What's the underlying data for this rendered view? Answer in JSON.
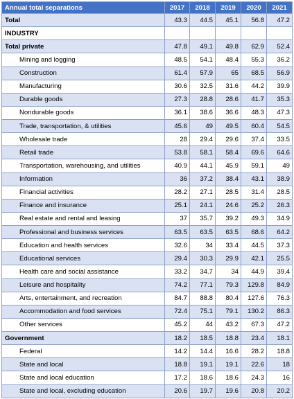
{
  "table": {
    "header": [
      "Annual total separations",
      "2017",
      "2018",
      "2019",
      "2020",
      "2021"
    ],
    "rows": [
      {
        "label": "Total",
        "values": [
          "43.3",
          "44.5",
          "45.1",
          "56.8",
          "47.2"
        ],
        "bold": true,
        "indent": false
      },
      {
        "label": "INDUSTRY",
        "values": [
          "",
          "",
          "",
          "",
          ""
        ],
        "bold": true,
        "indent": false
      },
      {
        "label": "Total private",
        "values": [
          "47.8",
          "49.1",
          "49.8",
          "62.9",
          "52.4"
        ],
        "bold": true,
        "indent": false
      },
      {
        "label": "Mining and logging",
        "values": [
          "48.5",
          "54.1",
          "48.4",
          "55.3",
          "36.2"
        ],
        "bold": false,
        "indent": true
      },
      {
        "label": "Construction",
        "values": [
          "61.4",
          "57.9",
          "65",
          "68.5",
          "56.9"
        ],
        "bold": false,
        "indent": true
      },
      {
        "label": "Manufacturing",
        "values": [
          "30.6",
          "32.5",
          "31.6",
          "44.2",
          "39.9"
        ],
        "bold": false,
        "indent": true
      },
      {
        "label": "Durable goods",
        "values": [
          "27.3",
          "28.8",
          "28.6",
          "41.7",
          "35.3"
        ],
        "bold": false,
        "indent": true
      },
      {
        "label": "Nondurable goods",
        "values": [
          "36.1",
          "38.6",
          "36.6",
          "48.3",
          "47.3"
        ],
        "bold": false,
        "indent": true
      },
      {
        "label": "Trade, transportation, & utilities",
        "values": [
          "45.6",
          "49",
          "49.5",
          "60.4",
          "54.5"
        ],
        "bold": false,
        "indent": true
      },
      {
        "label": "Wholesale trade",
        "values": [
          "28",
          "29.4",
          "29.6",
          "37.4",
          "33.5"
        ],
        "bold": false,
        "indent": true
      },
      {
        "label": "Retail trade",
        "values": [
          "53.8",
          "58.1",
          "58.4",
          "69.6",
          "64.6"
        ],
        "bold": false,
        "indent": true
      },
      {
        "label": "Transportation, warehousing, and utilities",
        "values": [
          "40.9",
          "44.1",
          "45.9",
          "59.1",
          "49"
        ],
        "bold": false,
        "indent": true
      },
      {
        "label": "Information",
        "values": [
          "36",
          "37.2",
          "38.4",
          "43.1",
          "38.9"
        ],
        "bold": false,
        "indent": true
      },
      {
        "label": "Financial activities",
        "values": [
          "28.2",
          "27.1",
          "28.5",
          "31.4",
          "28.5"
        ],
        "bold": false,
        "indent": true
      },
      {
        "label": "Finance and insurance",
        "values": [
          "25.1",
          "24.1",
          "24.6",
          "25.2",
          "26.3"
        ],
        "bold": false,
        "indent": true
      },
      {
        "label": "Real estate and rental and leasing",
        "values": [
          "37",
          "35.7",
          "39.2",
          "49.3",
          "34.9"
        ],
        "bold": false,
        "indent": true
      },
      {
        "label": "Professional and business services",
        "values": [
          "63.5",
          "63.5",
          "63.5",
          "68.6",
          "64.2"
        ],
        "bold": false,
        "indent": true
      },
      {
        "label": "Education and health services",
        "values": [
          "32.6",
          "34",
          "33.4",
          "44.5",
          "37.3"
        ],
        "bold": false,
        "indent": true
      },
      {
        "label": "Educational services",
        "values": [
          "29.4",
          "30.3",
          "29.9",
          "42.1",
          "25.5"
        ],
        "bold": false,
        "indent": true
      },
      {
        "label": "Health care and social assistance",
        "values": [
          "33.2",
          "34.7",
          "34",
          "44.9",
          "39.4"
        ],
        "bold": false,
        "indent": true
      },
      {
        "label": "Leisure and hospitality",
        "values": [
          "74.2",
          "77.1",
          "79.3",
          "129.8",
          "84.9"
        ],
        "bold": false,
        "indent": true
      },
      {
        "label": "Arts, entertainment, and recreation",
        "values": [
          "84.7",
          "88.8",
          "80.4",
          "127.6",
          "76.3"
        ],
        "bold": false,
        "indent": true
      },
      {
        "label": "Accommodation and food services",
        "values": [
          "72.4",
          "75.1",
          "79.1",
          "130.2",
          "86.3"
        ],
        "bold": false,
        "indent": true
      },
      {
        "label": "Other services",
        "values": [
          "45.2",
          "44",
          "43.2",
          "67.3",
          "47.2"
        ],
        "bold": false,
        "indent": true
      },
      {
        "label": "Government",
        "values": [
          "18.2",
          "18.5",
          "18.8",
          "23.4",
          "18.1"
        ],
        "bold": true,
        "indent": false
      },
      {
        "label": "Federal",
        "values": [
          "14.2",
          "14.4",
          "16.6",
          "28.2",
          "18.8"
        ],
        "bold": false,
        "indent": true
      },
      {
        "label": "State and local",
        "values": [
          "18.8",
          "19.1",
          "19.1",
          "22.6",
          "18"
        ],
        "bold": false,
        "indent": true
      },
      {
        "label": "State and local education",
        "values": [
          "17.2",
          "18.6",
          "18.6",
          "24.3",
          "16"
        ],
        "bold": false,
        "indent": true
      },
      {
        "label": "State and local, excluding education",
        "values": [
          "20.6",
          "19.7",
          "19.6",
          "20.8",
          "20.2"
        ],
        "bold": false,
        "indent": true
      }
    ]
  },
  "colors": {
    "header_bg": "#4472c4",
    "band_bg": "#d9e1f2",
    "row_bg": "#ffffff",
    "border": "#8ea0c8"
  }
}
